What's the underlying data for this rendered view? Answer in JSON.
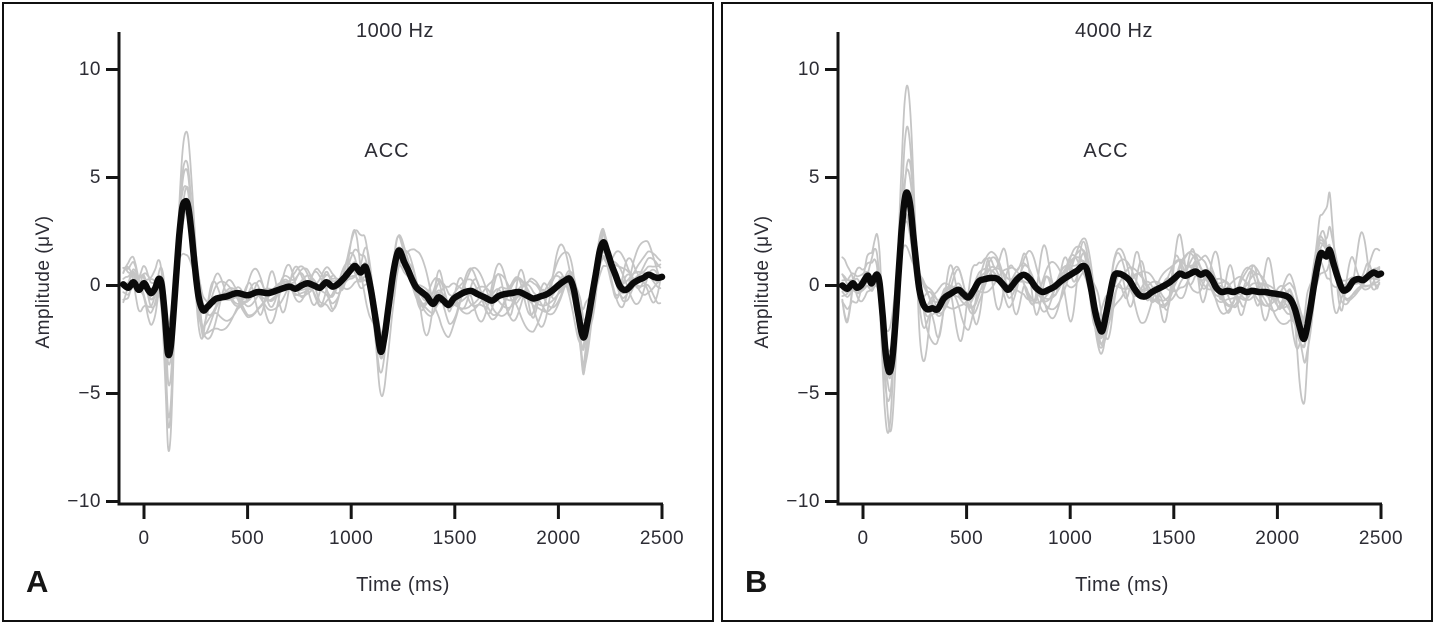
{
  "chart_data": [
    {
      "type": "line",
      "panel_label": "A",
      "title": "1000 Hz",
      "annotation": "ACC",
      "xlabel": "Time (ms)",
      "ylabel": "Amplitude (μV)",
      "xlim": [
        -100,
        2500
      ],
      "ylim": [
        -10,
        12
      ],
      "xticks": [
        0,
        500,
        1000,
        1500,
        2000,
        2500
      ],
      "xtick_labels": [
        "0",
        "500",
        "1000",
        "1500",
        "2000",
        "2500"
      ],
      "yticks": [
        10,
        5,
        0,
        -5,
        -10
      ],
      "ytick_labels": [
        "10",
        "5",
        "0",
        "−5",
        "−10"
      ],
      "grid": false,
      "legend": "none",
      "colors": {
        "mean_trace": "#0a0a0a",
        "individual_traces": "#c5c5c5",
        "axis": "#151515"
      },
      "mean_trace": [
        [
          -100,
          0.05
        ],
        [
          -75,
          -0.1
        ],
        [
          -50,
          0.15
        ],
        [
          -25,
          -0.2
        ],
        [
          0,
          0.1
        ],
        [
          20,
          -0.2
        ],
        [
          35,
          -0.35
        ],
        [
          55,
          -0.1
        ],
        [
          70,
          0.3
        ],
        [
          85,
          0.05
        ],
        [
          100,
          -1.3
        ],
        [
          115,
          -3.1
        ],
        [
          128,
          -2.9
        ],
        [
          140,
          -1.6
        ],
        [
          155,
          0.4
        ],
        [
          170,
          2.3
        ],
        [
          185,
          3.6
        ],
        [
          200,
          3.9
        ],
        [
          212,
          3.7
        ],
        [
          225,
          2.8
        ],
        [
          240,
          1.4
        ],
        [
          252,
          0.3
        ],
        [
          265,
          -0.6
        ],
        [
          285,
          -1.15
        ],
        [
          305,
          -1.0
        ],
        [
          330,
          -0.75
        ],
        [
          350,
          -0.6
        ],
        [
          400,
          -0.5
        ],
        [
          450,
          -0.35
        ],
        [
          500,
          -0.45
        ],
        [
          550,
          -0.3
        ],
        [
          600,
          -0.35
        ],
        [
          650,
          -0.2
        ],
        [
          700,
          -0.05
        ],
        [
          730,
          -0.15
        ],
        [
          760,
          0.0
        ],
        [
          790,
          0.1
        ],
        [
          820,
          0.0
        ],
        [
          850,
          -0.1
        ],
        [
          880,
          0.15
        ],
        [
          910,
          -0.05
        ],
        [
          940,
          0.1
        ],
        [
          970,
          0.4
        ],
        [
          1000,
          0.75
        ],
        [
          1020,
          0.9
        ],
        [
          1045,
          0.6
        ],
        [
          1070,
          0.85
        ],
        [
          1095,
          -0.2
        ],
        [
          1120,
          -1.7
        ],
        [
          1142,
          -3.05
        ],
        [
          1160,
          -2.4
        ],
        [
          1180,
          -1.0
        ],
        [
          1200,
          0.4
        ],
        [
          1220,
          1.4
        ],
        [
          1235,
          1.6
        ],
        [
          1255,
          1.1
        ],
        [
          1275,
          0.7
        ],
        [
          1295,
          0.25
        ],
        [
          1315,
          -0.1
        ],
        [
          1340,
          -0.3
        ],
        [
          1365,
          -0.5
        ],
        [
          1395,
          -0.85
        ],
        [
          1420,
          -0.55
        ],
        [
          1445,
          -0.7
        ],
        [
          1470,
          -0.9
        ],
        [
          1495,
          -0.6
        ],
        [
          1520,
          -0.45
        ],
        [
          1550,
          -0.3
        ],
        [
          1580,
          -0.25
        ],
        [
          1610,
          -0.4
        ],
        [
          1645,
          -0.55
        ],
        [
          1680,
          -0.7
        ],
        [
          1710,
          -0.5
        ],
        [
          1740,
          -0.4
        ],
        [
          1775,
          -0.35
        ],
        [
          1810,
          -0.3
        ],
        [
          1845,
          -0.45
        ],
        [
          1880,
          -0.6
        ],
        [
          1915,
          -0.5
        ],
        [
          1945,
          -0.4
        ],
        [
          1975,
          -0.2
        ],
        [
          2005,
          0.05
        ],
        [
          2035,
          0.25
        ],
        [
          2055,
          0.3
        ],
        [
          2075,
          -0.2
        ],
        [
          2095,
          -1.3
        ],
        [
          2120,
          -2.4
        ],
        [
          2140,
          -1.7
        ],
        [
          2160,
          -0.6
        ],
        [
          2180,
          0.5
        ],
        [
          2200,
          1.6
        ],
        [
          2218,
          2.0
        ],
        [
          2235,
          1.6
        ],
        [
          2255,
          1.0
        ],
        [
          2275,
          0.5
        ],
        [
          2295,
          0.0
        ],
        [
          2315,
          -0.2
        ],
        [
          2335,
          -0.15
        ],
        [
          2360,
          0.1
        ],
        [
          2385,
          0.25
        ],
        [
          2410,
          0.35
        ],
        [
          2435,
          0.5
        ],
        [
          2460,
          0.4
        ],
        [
          2480,
          0.35
        ],
        [
          2500,
          0.4
        ]
      ],
      "individual_traces": {
        "count": 10,
        "description": "individual-subject replications: scaled copies of the mean trace plus smooth noise",
        "positive_scales": [
          1.8,
          1.55,
          1.4,
          1.25,
          1.15,
          1.05,
          0.9,
          0.75,
          0.6,
          0.5
        ],
        "negative_scales": [
          2.55,
          2.2,
          1.9,
          1.65,
          1.4,
          1.2,
          1.05,
          0.85,
          0.7,
          0.55
        ],
        "noise_amplitude": 1.05,
        "noise_period_range_ms": [
          90,
          400
        ],
        "scale_modulation_period_range_ms": [
          1400,
          2600
        ],
        "seed": 11
      }
    },
    {
      "type": "line",
      "panel_label": "B",
      "title": "4000 Hz",
      "annotation": "ACC",
      "xlabel": "Time (ms)",
      "ylabel": "Amplitude (μV)",
      "xlim": [
        -100,
        2500
      ],
      "ylim": [
        -10,
        12
      ],
      "xticks": [
        0,
        500,
        1000,
        1500,
        2000,
        2500
      ],
      "xtick_labels": [
        "0",
        "500",
        "1000",
        "1500",
        "2000",
        "2500"
      ],
      "yticks": [
        10,
        5,
        0,
        -5,
        -10
      ],
      "ytick_labels": [
        "10",
        "5",
        "0",
        "−5",
        "−10"
      ],
      "grid": false,
      "legend": "none",
      "colors": {
        "mean_trace": "#0a0a0a",
        "individual_traces": "#c5c5c5",
        "axis": "#151515"
      },
      "mean_trace": [
        [
          -100,
          0.0
        ],
        [
          -75,
          -0.15
        ],
        [
          -50,
          0.1
        ],
        [
          -30,
          -0.1
        ],
        [
          -10,
          0.0
        ],
        [
          10,
          0.3
        ],
        [
          25,
          0.45
        ],
        [
          40,
          0.1
        ],
        [
          55,
          0.35
        ],
        [
          68,
          0.5
        ],
        [
          80,
          0.1
        ],
        [
          95,
          -1.4
        ],
        [
          110,
          -3.2
        ],
        [
          126,
          -4.0
        ],
        [
          140,
          -3.5
        ],
        [
          155,
          -1.9
        ],
        [
          170,
          0.3
        ],
        [
          185,
          2.4
        ],
        [
          200,
          3.9
        ],
        [
          213,
          4.3
        ],
        [
          228,
          3.7
        ],
        [
          243,
          2.3
        ],
        [
          258,
          0.9
        ],
        [
          272,
          -0.2
        ],
        [
          290,
          -0.85
        ],
        [
          310,
          -1.1
        ],
        [
          335,
          -1.05
        ],
        [
          360,
          -1.1
        ],
        [
          390,
          -0.6
        ],
        [
          420,
          -0.4
        ],
        [
          460,
          -0.2
        ],
        [
          485,
          -0.4
        ],
        [
          510,
          -0.55
        ],
        [
          535,
          -0.2
        ],
        [
          560,
          0.2
        ],
        [
          590,
          0.3
        ],
        [
          620,
          0.35
        ],
        [
          650,
          0.3
        ],
        [
          680,
          0.0
        ],
        [
          700,
          -0.2
        ],
        [
          720,
          0.0
        ],
        [
          745,
          0.3
        ],
        [
          775,
          0.5
        ],
        [
          805,
          0.3
        ],
        [
          835,
          -0.1
        ],
        [
          865,
          -0.3
        ],
        [
          895,
          -0.2
        ],
        [
          925,
          -0.05
        ],
        [
          955,
          0.2
        ],
        [
          985,
          0.4
        ],
        [
          1010,
          0.55
        ],
        [
          1035,
          0.7
        ],
        [
          1060,
          0.9
        ],
        [
          1080,
          0.75
        ],
        [
          1100,
          -0.1
        ],
        [
          1120,
          -1.2
        ],
        [
          1140,
          -1.9
        ],
        [
          1155,
          -2.1
        ],
        [
          1172,
          -1.4
        ],
        [
          1192,
          -0.4
        ],
        [
          1212,
          0.45
        ],
        [
          1235,
          0.55
        ],
        [
          1260,
          0.45
        ],
        [
          1285,
          0.25
        ],
        [
          1310,
          -0.15
        ],
        [
          1335,
          -0.45
        ],
        [
          1365,
          -0.5
        ],
        [
          1395,
          -0.3
        ],
        [
          1425,
          -0.15
        ],
        [
          1455,
          0.0
        ],
        [
          1480,
          0.15
        ],
        [
          1505,
          0.35
        ],
        [
          1530,
          0.55
        ],
        [
          1555,
          0.45
        ],
        [
          1580,
          0.55
        ],
        [
          1605,
          0.65
        ],
        [
          1630,
          0.5
        ],
        [
          1655,
          0.6
        ],
        [
          1680,
          0.35
        ],
        [
          1705,
          -0.1
        ],
        [
          1730,
          -0.3
        ],
        [
          1760,
          -0.25
        ],
        [
          1790,
          -0.3
        ],
        [
          1820,
          -0.2
        ],
        [
          1850,
          -0.3
        ],
        [
          1880,
          -0.25
        ],
        [
          1910,
          -0.3
        ],
        [
          1940,
          -0.3
        ],
        [
          1970,
          -0.35
        ],
        [
          2000,
          -0.4
        ],
        [
          2030,
          -0.45
        ],
        [
          2060,
          -0.6
        ],
        [
          2085,
          -1.1
        ],
        [
          2110,
          -2.0
        ],
        [
          2130,
          -2.45
        ],
        [
          2155,
          -1.3
        ],
        [
          2180,
          0.2
        ],
        [
          2205,
          1.4
        ],
        [
          2222,
          1.45
        ],
        [
          2238,
          1.35
        ],
        [
          2252,
          1.65
        ],
        [
          2270,
          1.05
        ],
        [
          2292,
          0.35
        ],
        [
          2315,
          -0.2
        ],
        [
          2340,
          -0.15
        ],
        [
          2365,
          0.2
        ],
        [
          2390,
          0.3
        ],
        [
          2415,
          0.25
        ],
        [
          2440,
          0.45
        ],
        [
          2465,
          0.6
        ],
        [
          2485,
          0.5
        ],
        [
          2500,
          0.55
        ]
      ],
      "individual_traces": {
        "count": 10,
        "description": "individual-subject replications: scaled copies of the mean trace plus smooth noise",
        "positive_scales": [
          2.35,
          1.9,
          1.35,
          1.15,
          1.05,
          0.95,
          0.85,
          0.7,
          0.6,
          0.5
        ],
        "negative_scales": [
          1.85,
          1.65,
          1.45,
          1.3,
          1.15,
          1.05,
          0.9,
          0.8,
          0.65,
          0.55
        ],
        "noise_amplitude": 1.15,
        "noise_period_range_ms": [
          90,
          400
        ],
        "scale_modulation_period_range_ms": [
          1400,
          2600
        ],
        "seed": 29
      }
    }
  ]
}
